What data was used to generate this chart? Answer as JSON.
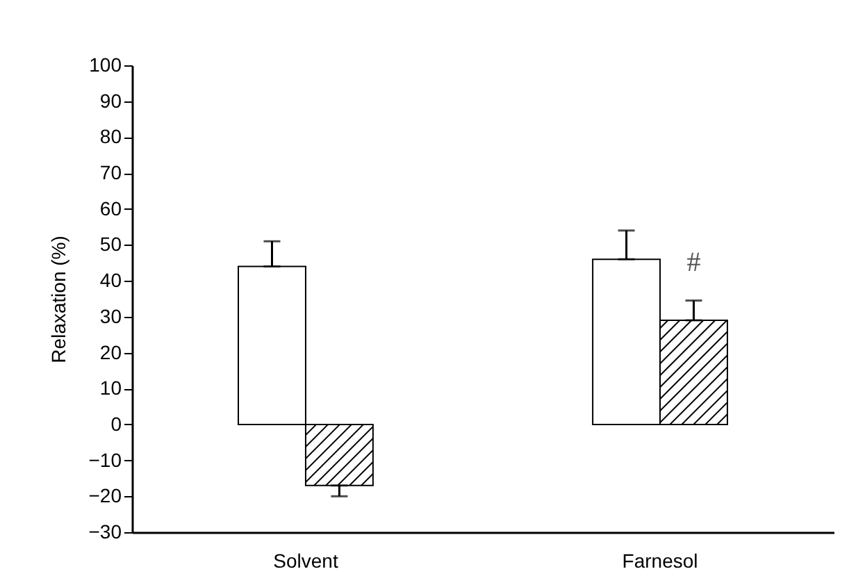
{
  "chart_data": {
    "type": "bar",
    "ylabel": "Relaxation (%)",
    "categories": [
      "Solvent",
      "Farnesol"
    ],
    "series": [
      {
        "color": "#ffffff",
        "values": [
          44,
          46
        ],
        "errors": [
          [
            44,
            51
          ],
          [
            46,
            54
          ]
        ]
      },
      {
        "color": "#000000",
        "values": [
          -17,
          29
        ],
        "errors": [
          [
            -20,
            -17
          ],
          [
            29,
            34.5
          ]
        ]
      }
    ],
    "ylim": [
      -30,
      100
    ],
    "yticks": [
      -30,
      -20,
      -10,
      0,
      10,
      20,
      30,
      40,
      50,
      60,
      70,
      80,
      90,
      100
    ],
    "grid": false,
    "legend": false,
    "annotations": [
      {
        "text": "#",
        "x": "Farnesol",
        "y": 45
      }
    ]
  }
}
